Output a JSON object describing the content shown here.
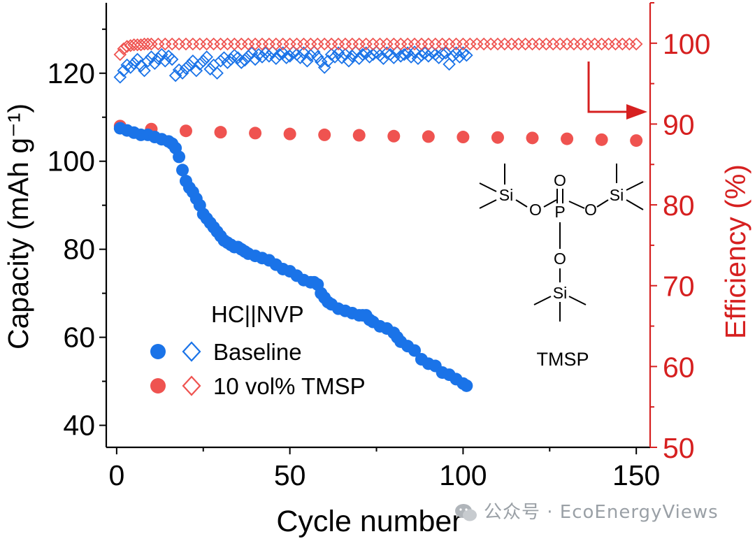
{
  "chart_data": {
    "type": "scatter",
    "xlabel": "Cycle number",
    "ylabel": "Capacity (mAh g⁻¹)",
    "y2label": "Efficiency (%)",
    "xlim": [
      -3,
      154
    ],
    "ylim": [
      35,
      136
    ],
    "y2lim": [
      50,
      105
    ],
    "xticks": [
      0,
      50,
      100,
      150
    ],
    "yticks": [
      40,
      60,
      80,
      100,
      120
    ],
    "y2ticks": [
      50,
      60,
      70,
      80,
      90,
      100
    ],
    "grid": false,
    "legend_title": "HC||NVP",
    "legend_position": "lower-left",
    "series": [
      {
        "name": "Baseline",
        "axis": "left",
        "marker": "circle-filled",
        "color": "#1a73e8",
        "x": [
          1,
          3,
          5,
          7,
          9,
          11,
          13,
          15,
          16,
          17,
          18,
          19,
          20,
          21,
          22,
          23,
          24,
          25,
          26,
          27,
          28,
          29,
          30,
          31,
          32,
          33,
          34,
          35,
          36,
          37,
          38,
          40,
          42,
          44,
          46,
          48,
          50,
          52,
          54,
          56,
          57,
          58,
          59,
          60,
          61,
          62,
          64,
          66,
          68,
          70,
          71,
          72,
          73,
          74,
          76,
          78,
          80,
          81,
          82,
          84,
          86,
          88,
          90,
          92,
          94,
          96,
          98,
          100,
          101
        ],
        "y": [
          107.5,
          107,
          106.5,
          106,
          106,
          105.5,
          105,
          104.5,
          104,
          103,
          101,
          98,
          95.5,
          94,
          93,
          91.5,
          90,
          88,
          87,
          86,
          85,
          84,
          83,
          82,
          81.5,
          81,
          80.5,
          80.5,
          80,
          79.5,
          79,
          78.5,
          78,
          77.5,
          76.5,
          75.5,
          75,
          74,
          73,
          72.5,
          72.5,
          72,
          70,
          69,
          68,
          67.5,
          66.5,
          66,
          65.5,
          65,
          65,
          65,
          64,
          63.5,
          62.5,
          62,
          61,
          60,
          59,
          58,
          57,
          55,
          54,
          53.5,
          52,
          51.5,
          50.5,
          49.5,
          49
        ]
      },
      {
        "name": "10 vol% TMSP",
        "axis": "left",
        "marker": "circle-filled",
        "color": "#ef5350",
        "x": [
          1,
          10,
          20,
          30,
          40,
          50,
          60,
          70,
          80,
          90,
          100,
          110,
          120,
          130,
          140,
          150
        ],
        "y": [
          108,
          107.3,
          106.9,
          106.6,
          106.4,
          106.2,
          106,
          105.9,
          105.7,
          105.6,
          105.5,
          105.4,
          105.3,
          105.1,
          104.9,
          104.7
        ]
      },
      {
        "name": "Baseline",
        "axis": "right",
        "marker": "diamond-open",
        "color": "#1a73e8",
        "x": [
          1,
          2,
          3,
          4,
          5,
          6,
          7,
          8,
          9,
          10,
          11,
          12,
          13,
          14,
          15,
          16,
          17,
          18,
          19,
          20,
          21,
          22,
          23,
          24,
          25,
          26,
          27,
          28,
          29,
          30,
          31,
          32,
          33,
          34,
          35,
          36,
          37,
          38,
          39,
          40,
          41,
          42,
          43,
          44,
          45,
          46,
          47,
          48,
          49,
          50,
          51,
          52,
          53,
          54,
          55,
          56,
          57,
          58,
          59,
          60,
          61,
          62,
          63,
          64,
          65,
          66,
          67,
          68,
          69,
          70,
          71,
          72,
          73,
          74,
          75,
          76,
          77,
          78,
          79,
          80,
          81,
          82,
          83,
          84,
          85,
          86,
          87,
          88,
          89,
          90,
          91,
          92,
          93,
          94,
          95,
          96,
          97,
          98,
          99,
          100,
          101
        ],
        "y": [
          95.8,
          96.6,
          97.3,
          97,
          97.5,
          98,
          97.2,
          96.6,
          97.8,
          98.3,
          97.5,
          98.1,
          98.6,
          97.8,
          98.4,
          98,
          96,
          96.7,
          96.3,
          96.9,
          97.3,
          97.8,
          96.6,
          97.4,
          97.8,
          98.3,
          96.8,
          97.3,
          96.3,
          97.8,
          98.2,
          97.6,
          98,
          98.5,
          98.2,
          97.6,
          97.9,
          98.4,
          98.8,
          98,
          98.6,
          98.3,
          98.8,
          98.4,
          98.9,
          98.1,
          98.6,
          98.8,
          98.2,
          98.4,
          98.9,
          98.6,
          98.2,
          98.8,
          97.8,
          98.5,
          98.9,
          98.3,
          97.7,
          97,
          97.8,
          98.6,
          98.3,
          98.8,
          98.2,
          98.6,
          97.8,
          98.4,
          98.9,
          98.1,
          98.6,
          98.8,
          98.3,
          98.6,
          98.9,
          98.5,
          98.1,
          98.8,
          98.6,
          98.2,
          98.9,
          98.4,
          98.6,
          98.8,
          98.3,
          98.9,
          98.1,
          98.5,
          98.8,
          98.4,
          98.9,
          98.6,
          98.2,
          98.7,
          98.8,
          97.4,
          98.4,
          98.8,
          98.3,
          98.8,
          98.5
        ]
      },
      {
        "name": "10 vol% TMSP",
        "axis": "right",
        "marker": "diamond-open",
        "color": "#ef5350",
        "x": [
          1,
          2,
          3,
          4,
          5,
          6,
          7,
          8,
          9,
          10,
          12,
          14,
          16,
          18,
          20,
          22,
          24,
          26,
          28,
          30,
          32,
          34,
          36,
          38,
          40,
          42,
          44,
          46,
          48,
          50,
          52,
          54,
          56,
          58,
          60,
          62,
          64,
          66,
          68,
          70,
          72,
          74,
          76,
          78,
          80,
          82,
          84,
          86,
          88,
          90,
          92,
          94,
          96,
          98,
          100,
          102,
          104,
          106,
          108,
          110,
          112,
          114,
          116,
          118,
          120,
          122,
          124,
          126,
          128,
          130,
          132,
          134,
          136,
          138,
          140,
          142,
          144,
          146,
          148,
          150
        ],
        "y": [
          98.6,
          99.3,
          99.6,
          99.7,
          99.8,
          99.8,
          99.8,
          99.9,
          99.9,
          99.9,
          99.9,
          99.9,
          99.9,
          99.9,
          99.9,
          99.9,
          99.9,
          99.9,
          99.9,
          99.9,
          99.9,
          99.9,
          99.9,
          99.9,
          99.9,
          99.9,
          99.9,
          99.9,
          99.9,
          99.9,
          99.9,
          99.9,
          99.9,
          99.9,
          99.9,
          99.9,
          99.9,
          99.9,
          99.9,
          99.9,
          99.9,
          99.9,
          99.9,
          99.9,
          99.9,
          99.9,
          99.9,
          99.9,
          99.9,
          99.9,
          99.9,
          99.9,
          99.9,
          99.9,
          99.9,
          99.9,
          99.9,
          99.9,
          99.9,
          99.9,
          99.9,
          99.9,
          99.9,
          99.9,
          99.9,
          99.9,
          99.9,
          99.9,
          99.9,
          99.9,
          99.9,
          99.9,
          99.9,
          99.9,
          99.9,
          99.9,
          99.9,
          99.9,
          99.9,
          99.9
        ]
      }
    ],
    "annotations": {
      "molecule_label": "TMSP",
      "atoms": {
        "si": "Si",
        "o": "O",
        "p": "P"
      }
    },
    "colors": {
      "left_axis": "#000000",
      "right_axis": "#d62020",
      "arrow": "#d62020"
    }
  },
  "watermark": {
    "text": "公众号 · EcoEnergyViews",
    "icon": "wechat-icon"
  }
}
